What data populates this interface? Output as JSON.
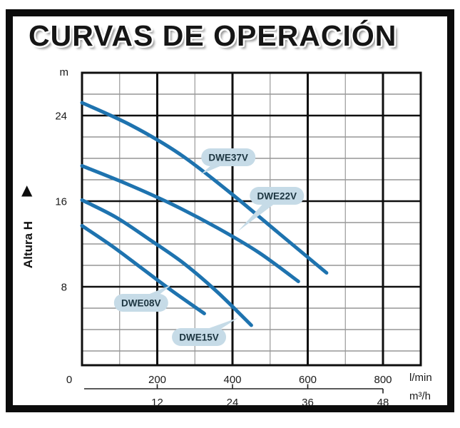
{
  "title": "CURVAS DE OPERACIÓN",
  "y_axis": {
    "unit": "m",
    "label": "Altura  H",
    "arrow": "▲"
  },
  "x_axis": {
    "unit": "l/min"
  },
  "x_axis_secondary": {
    "unit": "m³/h"
  },
  "colors": {
    "curve": "#1e73af",
    "bubble_fill": "#c6dbe7",
    "bubble_text": "#1c3540",
    "grid_minor_v": "#999999",
    "grid_minor_h": "#808080",
    "grid_major": "#0f0f0f",
    "axis_text": "#1a1a1a"
  },
  "chart_data": {
    "type": "line",
    "title": "CURVAS DE OPERACIÓN",
    "xlabel": "l/min",
    "xlabel_secondary": "m³/h",
    "ylabel": "Altura H (m)",
    "xlim_lmin": [
      0,
      900
    ],
    "ylim_m": [
      0,
      28
    ],
    "x_ticks_lmin": [
      0,
      200,
      400,
      600,
      800
    ],
    "x_minor_lmin": [
      100,
      300,
      500,
      700
    ],
    "x_ticks_m3h": [
      12,
      24,
      36,
      48
    ],
    "y_ticks_m": [
      8,
      16,
      24
    ],
    "y_minor_m": [
      2,
      4,
      6,
      10,
      12,
      14,
      18,
      20,
      22,
      26
    ],
    "grid": true,
    "legend_position": "callout-bubbles-on-curves",
    "series": [
      {
        "name": "DWE37V",
        "points": [
          [
            0,
            25.2
          ],
          [
            130,
            23.1
          ],
          [
            260,
            20.4
          ],
          [
            390,
            16.9
          ],
          [
            520,
            13.1
          ],
          [
            650,
            9.3
          ]
        ]
      },
      {
        "name": "DWE22V",
        "points": [
          [
            0,
            19.3
          ],
          [
            120,
            17.6
          ],
          [
            240,
            15.7
          ],
          [
            360,
            13.5
          ],
          [
            470,
            11.2
          ],
          [
            575,
            8.5
          ]
        ]
      },
      {
        "name": "DWE15V",
        "points": [
          [
            0,
            16.1
          ],
          [
            90,
            14.5
          ],
          [
            180,
            12.4
          ],
          [
            270,
            10.2
          ],
          [
            360,
            7.5
          ],
          [
            450,
            4.4
          ]
        ]
      },
      {
        "name": "DWE08V",
        "points": [
          [
            0,
            13.7
          ],
          [
            80,
            11.8
          ],
          [
            160,
            9.7
          ],
          [
            240,
            7.6
          ],
          [
            325,
            5.5
          ]
        ]
      }
    ],
    "labels": [
      {
        "text": "DWE37V",
        "q": 389,
        "h": 20.1,
        "tip_q": 315,
        "tip_h": 18.5
      },
      {
        "text": "DWE22V",
        "q": 518,
        "h": 16.5,
        "tip_q": 415,
        "tip_h": 13.2
      },
      {
        "text": "DWE08V",
        "q": 157,
        "h": 6.5,
        "tip_q": 239,
        "tip_h": 8.2
      },
      {
        "text": "DWE15V",
        "q": 311,
        "h": 3.3,
        "tip_q": 415,
        "tip_h": 5.1
      }
    ]
  }
}
